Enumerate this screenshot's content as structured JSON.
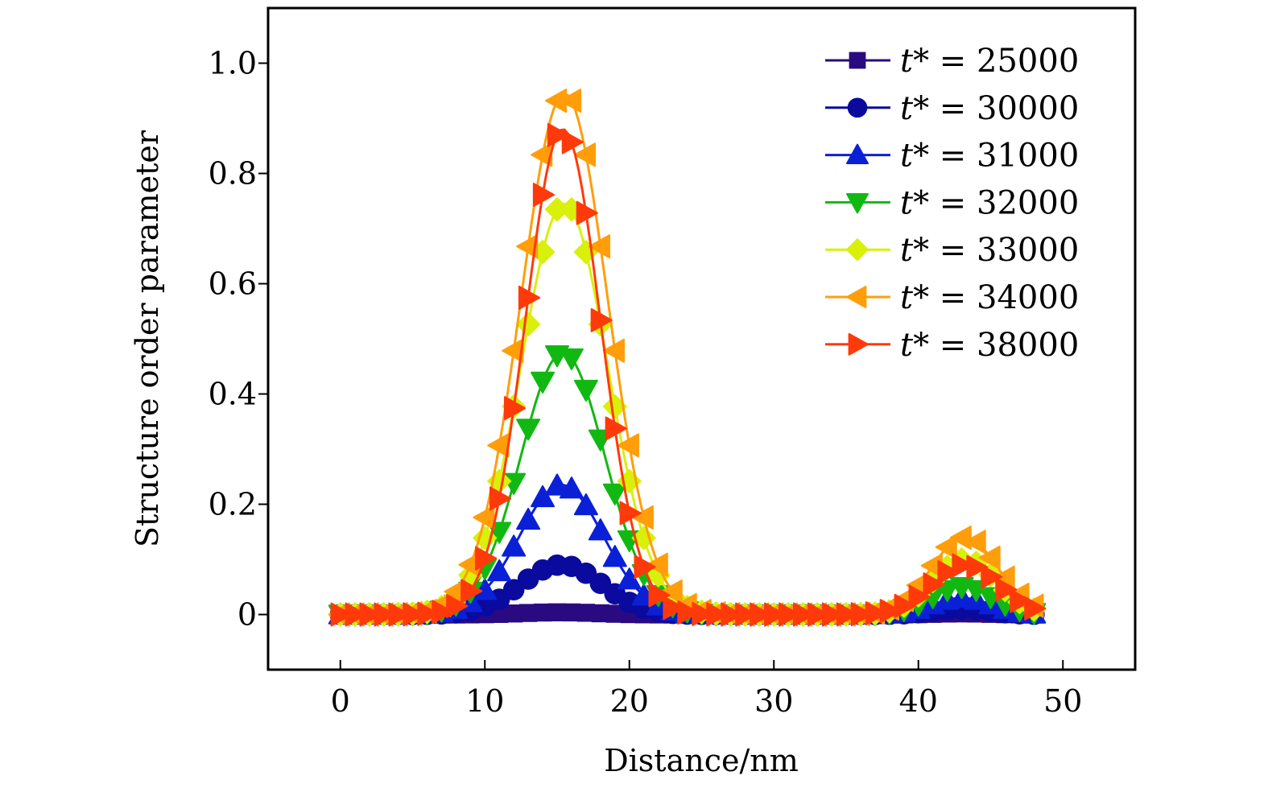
{
  "chart_data": {
    "type": "line",
    "title": "",
    "xlabel": "Distance/nm",
    "ylabel": "Structure order parameter",
    "xlim": [
      -5,
      55
    ],
    "ylim": [
      -0.1,
      1.1
    ],
    "xticks": [
      0,
      10,
      20,
      30,
      40,
      50
    ],
    "xtick_labels": [
      "0",
      "10",
      "20",
      "30",
      "40",
      "50"
    ],
    "yticks": [
      0,
      0.2,
      0.4,
      0.6,
      0.8,
      1.0
    ],
    "ytick_labels": [
      "0",
      "0.2",
      "0.4",
      "0.6",
      "0.8",
      "1.0"
    ],
    "grid": false,
    "legend_position": "top-right",
    "x": [
      0,
      1,
      2,
      3,
      4,
      5,
      6,
      7,
      8,
      9,
      10,
      11,
      12,
      13,
      14,
      15,
      16,
      17,
      18,
      19,
      20,
      21,
      22,
      23,
      24,
      25,
      26,
      27,
      28,
      29,
      30,
      31,
      32,
      33,
      34,
      35,
      36,
      37,
      38,
      39,
      40,
      41,
      42,
      43,
      44,
      45,
      46,
      47,
      48
    ],
    "series": [
      {
        "name": "t* = 25000",
        "var": "t*",
        "value": "= 25000",
        "color": "#2a0a80",
        "marker": "square",
        "peak1": {
          "center": 15.2,
          "height": 0.004,
          "width": 2.6
        },
        "peak2": {
          "center": 43,
          "height": 0.002,
          "width": 2.0
        }
      },
      {
        "name": "t* = 30000",
        "var": "t*",
        "value": "= 30000",
        "color": "#0a0a9e",
        "marker": "circle",
        "peak1": {
          "center": 15.3,
          "height": 0.09,
          "width": 2.8
        },
        "peak2": {
          "center": 43,
          "height": 0.01,
          "width": 2.0
        }
      },
      {
        "name": "t* = 31000",
        "var": "t*",
        "value": "= 31000",
        "color": "#0a20d6",
        "marker": "triangle-up",
        "peak1": {
          "center": 15.3,
          "height": 0.235,
          "width": 2.9
        },
        "peak2": {
          "center": 43,
          "height": 0.03,
          "width": 2.0
        }
      },
      {
        "name": "t* = 32000",
        "var": "t*",
        "value": "= 32000",
        "color": "#12b812",
        "marker": "triangle-down",
        "peak1": {
          "center": 15.4,
          "height": 0.475,
          "width": 2.9
        },
        "peak2": {
          "center": 43,
          "height": 0.05,
          "width": 2.1
        }
      },
      {
        "name": "t* = 33000",
        "var": "t*",
        "value": "= 33000",
        "color": "#d8f00a",
        "marker": "diamond",
        "peak1": {
          "center": 15.5,
          "height": 0.745,
          "width": 3.0
        },
        "peak2": {
          "center": 43.2,
          "height": 0.1,
          "width": 2.2
        }
      },
      {
        "name": "t* = 34000",
        "var": "t*",
        "value": "= 34000",
        "color": "#ff9e0a",
        "marker": "triangle-left",
        "peak1": {
          "center": 15.5,
          "height": 0.945,
          "width": 3.0
        },
        "peak2": {
          "center": 43.2,
          "height": 0.14,
          "width": 2.3
        }
      },
      {
        "name": "t* = 38000",
        "var": "t*",
        "value": "= 38000",
        "color": "#ff3a0a",
        "marker": "triangle-right",
        "peak1": {
          "center": 15.4,
          "height": 0.88,
          "width": 2.6
        },
        "peak2": {
          "center": 43.3,
          "height": 0.09,
          "width": 2.3
        }
      }
    ]
  }
}
